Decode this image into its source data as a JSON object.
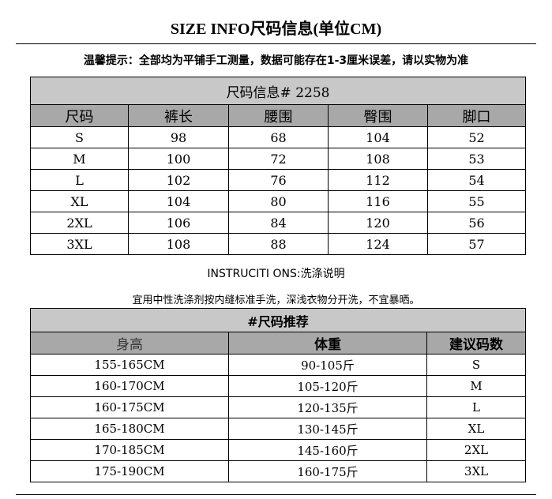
{
  "title": "SIZE INFO尺码信息(单位CM)",
  "notice": "温馨提示：全部均为平铺手工测量，数据可能存在1-3厘米误差，请以实物为准",
  "size_table": {
    "caption": "尺码信息# 2258",
    "headers": [
      "尺码",
      "裤长",
      "腰围",
      "臀围",
      "脚口"
    ],
    "rows": [
      [
        "S",
        "98",
        "68",
        "104",
        "52"
      ],
      [
        "M",
        "100",
        "72",
        "108",
        "53"
      ],
      [
        "L",
        "102",
        "76",
        "112",
        "54"
      ],
      [
        "XL",
        "104",
        "80",
        "116",
        "55"
      ],
      [
        "2XL",
        "106",
        "84",
        "120",
        "56"
      ],
      [
        "3XL",
        "108",
        "88",
        "124",
        "57"
      ]
    ]
  },
  "instructions": "INSTRUCITI ONS:洗涤说明",
  "wash_note": "宜用中性洗涤剂按内缝标准手洗，深浅衣物分开洗，不宜暴晒。",
  "recommend_table": {
    "caption": "#尺码推荐",
    "headers": [
      "身高",
      "体重",
      "建议码数"
    ],
    "rows": [
      [
        "155-165CM",
        "90-105斤",
        "S"
      ],
      [
        "160-170CM",
        "105-120斤",
        "M"
      ],
      [
        "160-175CM",
        "120-135斤",
        "L"
      ],
      [
        "165-180CM",
        "130-145斤",
        "XL"
      ],
      [
        "170-185CM",
        "145-160斤",
        "2XL"
      ],
      [
        "175-190CM",
        "160-175斤",
        "3XL"
      ]
    ]
  }
}
